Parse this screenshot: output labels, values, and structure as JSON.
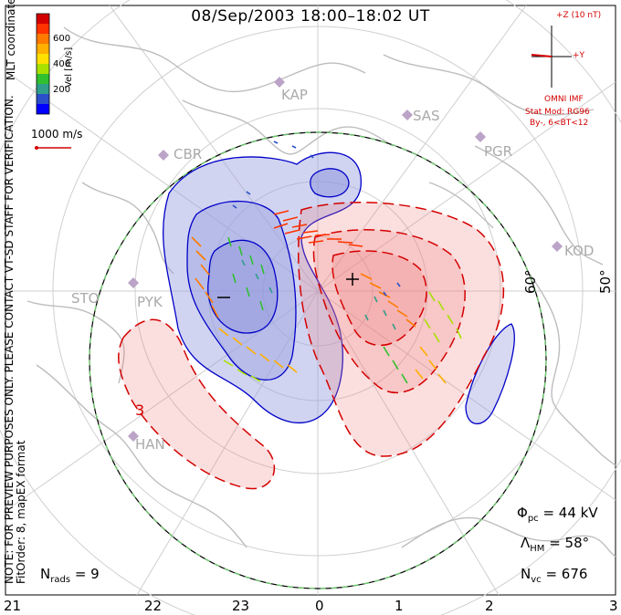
{
  "title": "08/Sep/2003 18:00–18:02 UT",
  "side_notes": {
    "coords": "MLT coordinates",
    "verification": "NOTE: FOR PREVIEW PURPOSES ONLY. PLEASE CONTACT VT-SD STAFF FOR VERIFICATION.",
    "fit": "FitOrder: 8, mapEX format"
  },
  "velocity_scale": {
    "label": "Vel [m/s]",
    "ticks": [
      "600",
      "400",
      "200"
    ],
    "colors": [
      "#d40000",
      "#ff3300",
      "#ff7a00",
      "#ffb000",
      "#ffe000",
      "#a8e000",
      "#30c030",
      "#2f9e8a",
      "#2a4fc8",
      "#0000ff"
    ],
    "reference": "1000 m/s"
  },
  "imf": {
    "z_label": "+Z (10 nT)",
    "y_label": "+Y",
    "source": "OMNI IMF",
    "model": "Stat Mod: RG96",
    "condition": "By-, 6<BT<12"
  },
  "stations": [
    "KAP",
    "SAS",
    "PGR",
    "KOD",
    "CBR",
    "STO",
    "PYK",
    "HAN"
  ],
  "latitude_labels": [
    "60°",
    "50°"
  ],
  "potential_labels": {
    "min": "−",
    "max": "+",
    "contour_number": "3"
  },
  "stats": {
    "phi_pc": "= 44 kV",
    "lambda_hm": "= 58°",
    "n_vc": "= 676",
    "n_rads": "= 9"
  },
  "mlt_labels": [
    "21",
    "22",
    "23",
    "0",
    "1",
    "2",
    "3"
  ],
  "colors": {
    "negative_cell": "#9aa0e0",
    "positive_cell": "#f08080",
    "contour_red": "#d40000",
    "contour_blue": "#0000c8",
    "coast": "#bdbdbd"
  }
}
